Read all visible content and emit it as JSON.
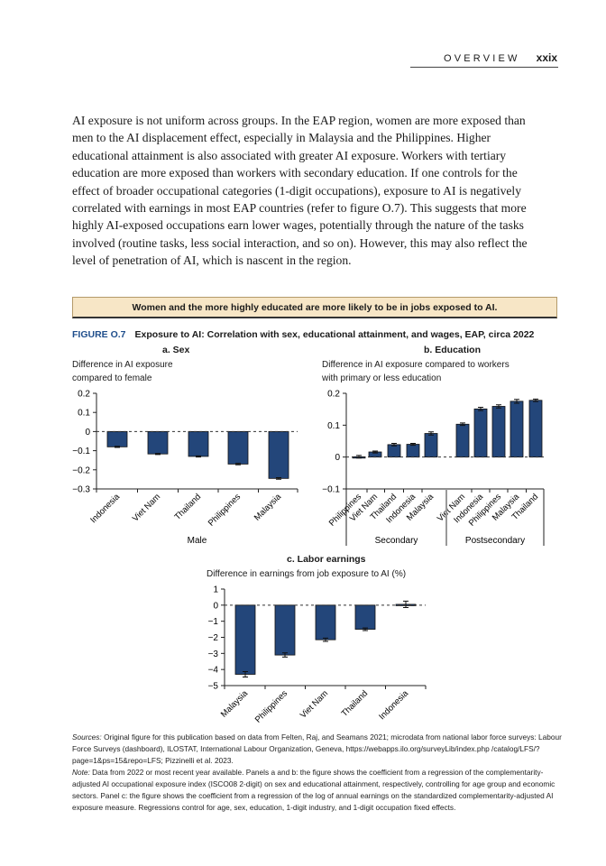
{
  "header": {
    "section": "OVERVIEW",
    "page": "xxix"
  },
  "body_text": "AI exposure is not uniform across groups. In the EAP region, women are more exposed than men to the AI displacement effect, especially in Malaysia and the Philippines. Higher educational attainment is also associated with greater AI exposure. Workers with tertiary education are more exposed than workers with secondary education. If one controls for the effect of broader occupational categories (1-digit occupations), exposure to AI is negatively correlated with earnings in most EAP countries (refer to figure O.7). This suggests that more highly AI-exposed occupations earn lower wages, potentially through the nature of the tasks involved (routine tasks, less social interaction, and so on). However, this may also reflect the level of penetration of AI, which is nascent in the region.",
  "callout": "Women and the more highly educated are more likely to be in jobs exposed to AI.",
  "figure": {
    "label": "FIGURE O.7",
    "title": "Exposure to AI: Correlation with sex, educational attainment, and wages, EAP, circa 2022"
  },
  "colors": {
    "bar": "#23467a",
    "figure_label": "#1f4e8c",
    "callout_bg": "#f7e6c6"
  },
  "chart_data": [
    {
      "type": "bar",
      "title": "a. Sex",
      "ylabel_lines": [
        "Difference in AI exposure",
        "compared to female"
      ],
      "xlabel": "Male",
      "categories": [
        "Indonesia",
        "Viet Nam",
        "Thailand",
        "Philippines",
        "Malaysia"
      ],
      "values": [
        -0.08,
        -0.117,
        -0.13,
        -0.17,
        -0.245
      ],
      "error": [
        0.003,
        0.003,
        0.003,
        0.004,
        0.004
      ],
      "ylim": [
        -0.3,
        0.2
      ],
      "yticks": [
        "0.2",
        "0.1",
        "0",
        "−0.1",
        "−0.2",
        "−0.3"
      ],
      "reference_line": 0
    },
    {
      "type": "bar",
      "title": "b. Education",
      "ylabel_lines": [
        "Difference in AI exposure compared to workers",
        "with primary or less education"
      ],
      "categories": [
        "Philippines",
        "Viet Nam",
        "Thailand",
        "Indonesia",
        "Malaysia",
        "Viet Nam",
        "Indonesia",
        "Philippines",
        "Malaysia",
        "Thailand"
      ],
      "groups": [
        {
          "name": "Secondary",
          "count": 5
        },
        {
          "name": "Postsecondary",
          "count": 5
        }
      ],
      "values": [
        0.001,
        0.016,
        0.039,
        0.04,
        0.074,
        0.103,
        0.151,
        0.159,
        0.175,
        0.178
      ],
      "error": [
        0.004,
        0.003,
        0.004,
        0.003,
        0.005,
        0.004,
        0.005,
        0.005,
        0.006,
        0.004
      ],
      "ylim": [
        -0.1,
        0.2
      ],
      "yticks": [
        "0.2",
        "0.1",
        "0",
        "−0.1"
      ],
      "reference_line": 0
    },
    {
      "type": "bar",
      "title": "c. Labor earnings",
      "ylabel_lines": [
        "Difference in earnings from job exposure to AI (%)"
      ],
      "categories": [
        "Malaysia",
        "Philippines",
        "Viet Nam",
        "Thailand",
        "Indonesia"
      ],
      "values": [
        -4.3,
        -3.1,
        -2.15,
        -1.5,
        0.05
      ],
      "error": [
        0.17,
        0.13,
        0.1,
        0.08,
        0.2
      ],
      "ylim": [
        -5,
        1
      ],
      "yticks": [
        "1",
        "0",
        "−1",
        "−2",
        "−3",
        "−4",
        "−5"
      ],
      "reference_line": 0
    }
  ],
  "notes": {
    "sources_label": "Sources:",
    "sources": "Original figure for this publication based on data from Felten, Raj, and Seamans 2021; microdata from national labor force surveys: Labour Force Surveys (dashboard), ILOSTAT, International Labour Organization, Geneva, https://webapps.ilo.org/surveyLib/index.php /catalog/LFS/?page=1&ps=15&repo=LFS; Pizzinelli et al. 2023.",
    "note_label": "Note:",
    "note": "Data from 2022 or most recent year available. Panels a and b: the figure shows the coefficient from a regression of the complementarity-adjusted AI occupational exposure index (ISCO08 2-digit) on sex and educational attainment, respectively, controlling for age group and economic sectors. Panel c: the figure shows the coefficient from a regression of the log of annual earnings on the standardized complementarity-adjusted AI exposure measure. Regressions control for age, sex, education, 1-digit industry, and 1-digit occupation fixed effects."
  }
}
